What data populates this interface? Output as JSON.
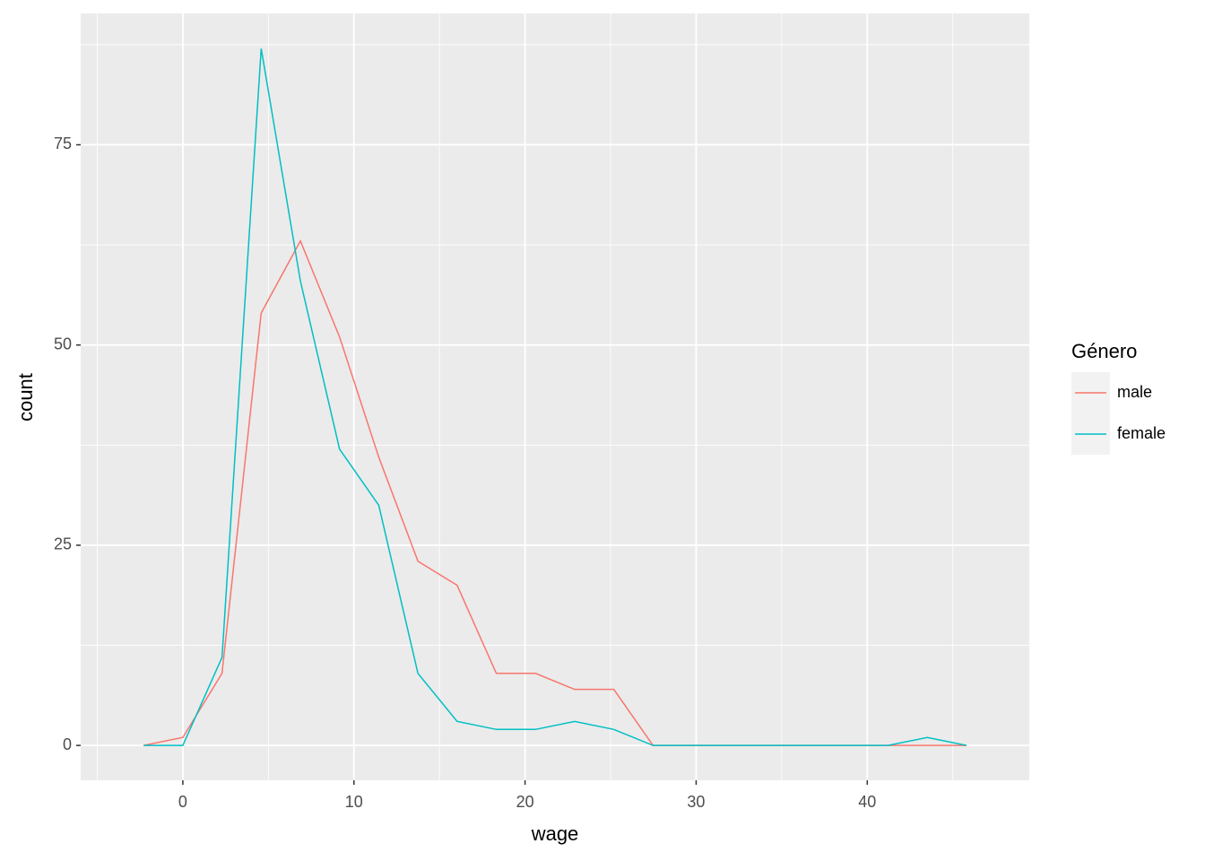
{
  "chart_data": {
    "type": "line",
    "x_label": "wage",
    "y_label": "count",
    "x": [
      -2.29,
      0,
      2.29,
      4.58,
      6.87,
      9.16,
      11.45,
      13.74,
      16.03,
      18.32,
      20.61,
      22.9,
      25.19,
      27.48,
      29.77,
      32.06,
      34.35,
      36.64,
      38.93,
      41.22,
      43.51,
      45.8
    ],
    "series": [
      {
        "name": "male",
        "color": "#F8766D",
        "values": [
          0,
          1,
          9,
          54,
          63,
          51,
          36,
          23,
          20,
          9,
          9,
          7,
          7,
          0,
          0,
          0,
          0,
          0,
          0,
          0,
          0,
          0
        ]
      },
      {
        "name": "female",
        "color": "#00BFC4",
        "values": [
          0,
          0,
          11,
          87,
          58,
          37,
          30,
          9,
          3,
          2,
          2,
          3,
          2,
          0,
          0,
          0,
          0,
          0,
          0,
          0,
          1,
          0
        ]
      }
    ],
    "legend_title": "Género",
    "xlim": [
      -5.97,
      49.47
    ],
    "ylim": [
      -4.35,
      91.4
    ],
    "xticks": [
      0,
      10,
      20,
      30,
      40
    ],
    "yticks": [
      0,
      25,
      50,
      75
    ],
    "grid": true,
    "legend_position": "right"
  }
}
